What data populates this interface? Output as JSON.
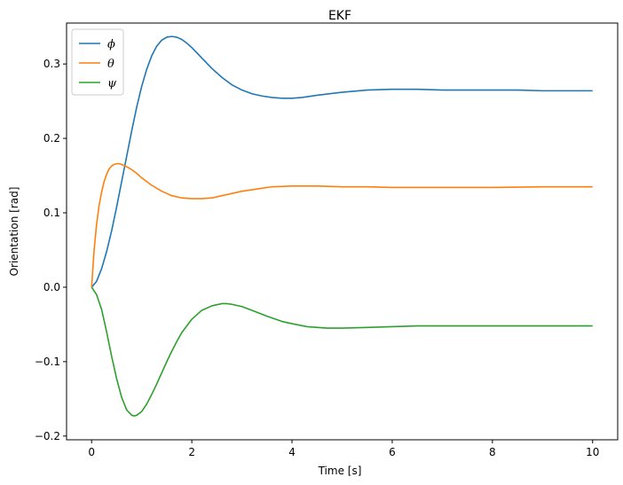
{
  "chart_data": {
    "type": "line",
    "title": "EKF",
    "xlabel": "Time [s]",
    "ylabel": "Orientation [rad]",
    "xlim": [
      -0.5,
      10.5
    ],
    "ylim": [
      -0.205,
      0.355
    ],
    "xticks": [
      0,
      2,
      4,
      6,
      8,
      10
    ],
    "xtick_labels": [
      "0",
      "2",
      "4",
      "6",
      "8",
      "10"
    ],
    "yticks": [
      -0.2,
      -0.1,
      0.0,
      0.1,
      0.2,
      0.3
    ],
    "ytick_labels": [
      "−0.2",
      "−0.1",
      "0.0",
      "0.1",
      "0.2",
      "0.3"
    ],
    "grid": false,
    "legend_position": "top-left",
    "series": [
      {
        "name": "ϕ",
        "color": "#1f77b4",
        "x": [
          0,
          0.1,
          0.2,
          0.3,
          0.4,
          0.5,
          0.6,
          0.7,
          0.8,
          0.9,
          1.0,
          1.1,
          1.2,
          1.3,
          1.4,
          1.5,
          1.6,
          1.7,
          1.8,
          1.9,
          2.0,
          2.2,
          2.4,
          2.6,
          2.8,
          3.0,
          3.2,
          3.4,
          3.6,
          3.8,
          4.0,
          4.2,
          4.5,
          5.0,
          5.5,
          6.0,
          6.5,
          7.0,
          7.5,
          8.0,
          8.5,
          9.0,
          9.5,
          10.0
        ],
        "y": [
          0.0,
          0.008,
          0.025,
          0.048,
          0.076,
          0.108,
          0.142,
          0.176,
          0.21,
          0.242,
          0.27,
          0.293,
          0.311,
          0.324,
          0.332,
          0.336,
          0.337,
          0.336,
          0.333,
          0.328,
          0.322,
          0.308,
          0.294,
          0.282,
          0.272,
          0.265,
          0.26,
          0.257,
          0.255,
          0.254,
          0.254,
          0.255,
          0.258,
          0.262,
          0.265,
          0.266,
          0.266,
          0.265,
          0.265,
          0.265,
          0.265,
          0.264,
          0.264,
          0.264
        ]
      },
      {
        "name": "θ",
        "color": "#ff7f0e",
        "x": [
          0,
          0.05,
          0.1,
          0.15,
          0.2,
          0.25,
          0.3,
          0.35,
          0.4,
          0.45,
          0.5,
          0.55,
          0.6,
          0.7,
          0.8,
          0.9,
          1.0,
          1.1,
          1.2,
          1.3,
          1.4,
          1.5,
          1.6,
          1.8,
          2.0,
          2.2,
          2.4,
          2.6,
          2.8,
          3.0,
          3.3,
          3.6,
          4.0,
          4.5,
          5.0,
          5.5,
          6.0,
          7.0,
          8.0,
          9.0,
          10.0
        ],
        "y": [
          0.0,
          0.05,
          0.085,
          0.11,
          0.128,
          0.142,
          0.152,
          0.159,
          0.163,
          0.165,
          0.166,
          0.166,
          0.165,
          0.162,
          0.158,
          0.153,
          0.147,
          0.142,
          0.137,
          0.133,
          0.129,
          0.126,
          0.123,
          0.12,
          0.119,
          0.119,
          0.12,
          0.123,
          0.126,
          0.129,
          0.132,
          0.135,
          0.136,
          0.136,
          0.135,
          0.135,
          0.134,
          0.134,
          0.134,
          0.135,
          0.135
        ]
      },
      {
        "name": "ψ",
        "color": "#2ca02c",
        "x": [
          0,
          0.1,
          0.2,
          0.3,
          0.4,
          0.5,
          0.6,
          0.7,
          0.8,
          0.85,
          0.9,
          1.0,
          1.1,
          1.2,
          1.3,
          1.4,
          1.5,
          1.6,
          1.7,
          1.8,
          2.0,
          2.2,
          2.4,
          2.6,
          2.7,
          2.8,
          3.0,
          3.2,
          3.5,
          3.8,
          4.0,
          4.3,
          4.7,
          5.0,
          5.5,
          6.0,
          6.5,
          7.0,
          8.0,
          9.0,
          10.0
        ],
        "y": [
          0.0,
          -0.01,
          -0.03,
          -0.06,
          -0.093,
          -0.123,
          -0.148,
          -0.165,
          -0.172,
          -0.173,
          -0.172,
          -0.167,
          -0.157,
          -0.144,
          -0.13,
          -0.115,
          -0.1,
          -0.086,
          -0.073,
          -0.061,
          -0.043,
          -0.031,
          -0.025,
          -0.022,
          -0.022,
          -0.023,
          -0.026,
          -0.031,
          -0.039,
          -0.046,
          -0.049,
          -0.053,
          -0.055,
          -0.055,
          -0.054,
          -0.053,
          -0.052,
          -0.052,
          -0.052,
          -0.052,
          -0.052
        ]
      }
    ]
  }
}
